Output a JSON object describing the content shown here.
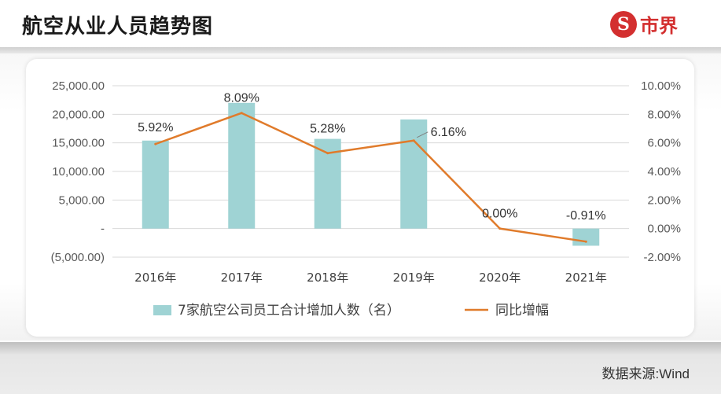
{
  "header": {
    "title": "航空从业人员趋势图",
    "logo_text": "市界",
    "logo_icon": "s-circle-logo"
  },
  "footer": {
    "source": "数据来源:Wind"
  },
  "colors": {
    "bar": "#9fd3d4",
    "line": "#e07b2b",
    "logo": "#d32f2f"
  },
  "chart_data": {
    "type": "bar",
    "categories": [
      "2016年",
      "2017年",
      "2018年",
      "2019年",
      "2020年",
      "2021年"
    ],
    "series": [
      {
        "name": "7家航空公司员工合计增加人数（名）",
        "type": "bar",
        "axis": "left",
        "values": [
          15400,
          22000,
          15700,
          19100,
          0,
          -3000
        ]
      },
      {
        "name": "同比增幅",
        "type": "line",
        "axis": "right",
        "values": [
          5.92,
          8.09,
          5.28,
          6.16,
          0.0,
          -0.91
        ],
        "labels": [
          "5.92%",
          "8.09%",
          "5.28%",
          "6.16%",
          "0.00%",
          "-0.91%"
        ]
      }
    ],
    "left_axis": {
      "ylim": [
        -5000,
        25000
      ],
      "ticks": [
        "(5,000.00)",
        "-",
        "5,000.00",
        "10,000.00",
        "15,000.00",
        "20,000.00",
        "25,000.00"
      ]
    },
    "right_axis": {
      "ylim": [
        -2,
        10
      ],
      "ticks": [
        "-2.00%",
        "0.00%",
        "2.00%",
        "4.00%",
        "6.00%",
        "8.00%",
        "10.00%"
      ]
    },
    "grid": true,
    "legend_position": "bottom"
  }
}
